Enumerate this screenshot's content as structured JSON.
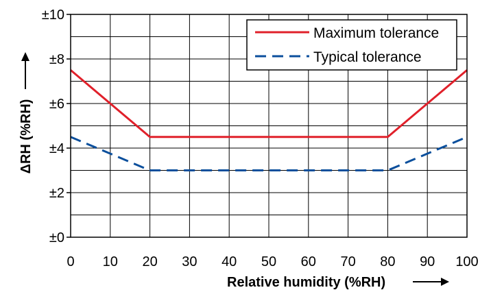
{
  "chart_data": {
    "type": "line",
    "xlabel": "Relative humidity (%RH)",
    "ylabel": "ΔRH (%RH)",
    "x_ticks": [
      0,
      10,
      20,
      30,
      40,
      50,
      60,
      70,
      80,
      90,
      100
    ],
    "y_ticks": [
      {
        "value": 0,
        "label": "±0"
      },
      {
        "value": 2,
        "label": "±2"
      },
      {
        "value": 4,
        "label": "±4"
      },
      {
        "value": 6,
        "label": "±6"
      },
      {
        "value": 8,
        "label": "±8"
      },
      {
        "value": 10,
        "label": "±10"
      }
    ],
    "xlim": [
      0,
      100
    ],
    "ylim": [
      0,
      10
    ],
    "grid": true,
    "legend_position": "top-right",
    "series": [
      {
        "name": "Maximum tolerance",
        "color": "#e0202a",
        "style": "solid",
        "x": [
          0,
          20,
          80,
          100
        ],
        "y": [
          7.5,
          4.5,
          4.5,
          7.5
        ]
      },
      {
        "name": "Typical tolerance",
        "color": "#0b4f9c",
        "style": "dashed",
        "x": [
          0,
          20,
          80,
          100
        ],
        "y": [
          4.5,
          3.0,
          3.0,
          4.5
        ]
      }
    ]
  }
}
